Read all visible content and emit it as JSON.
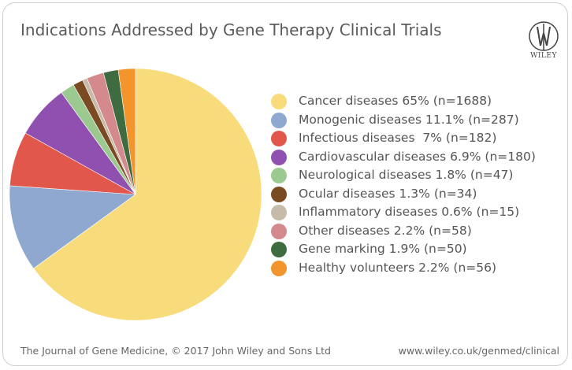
{
  "header": {
    "title": "Indications Addressed by Gene Therapy Clinical Trials",
    "logo_text": "WILEY"
  },
  "footer": {
    "left": "The Journal of Gene Medicine, © 2017 John Wiley and Sons Ltd",
    "right": "www.wiley.co.uk/genmed/clinical"
  },
  "chart_data": {
    "type": "pie",
    "title": "Indications Addressed by Gene Therapy Clinical Trials",
    "legend_position": "right",
    "slices": [
      {
        "label": "Cancer diseases 65% (n=1688)",
        "value": 65,
        "color": "#F8DC7C"
      },
      {
        "label": "Monogenic diseases 11.1% (n=287)",
        "value": 11.1,
        "color": "#8FA8CF"
      },
      {
        "label": "Infectious diseases  7% (n=182)",
        "value": 7,
        "color": "#E2574C"
      },
      {
        "label": "Cardiovascular diseases 6.9% (n=180)",
        "value": 6.9,
        "color": "#9050B0"
      },
      {
        "label": "Neurological diseases 1.8% (n=47)",
        "value": 1.8,
        "color": "#9CC98F"
      },
      {
        "label": "Ocular diseases 1.3% (n=34)",
        "value": 1.3,
        "color": "#7A4A22"
      },
      {
        "label": "Inflammatory diseases 0.6% (n=15)",
        "value": 0.6,
        "color": "#C5BBA8"
      },
      {
        "label": "Other diseases 2.2% (n=58)",
        "value": 2.2,
        "color": "#D48A8C"
      },
      {
        "label": "Gene marking 1.9% (n=50)",
        "value": 1.9,
        "color": "#3F6B40"
      },
      {
        "label": "Healthy volunteers 2.2% (n=56)",
        "value": 2.2,
        "color": "#F3952D"
      }
    ]
  }
}
